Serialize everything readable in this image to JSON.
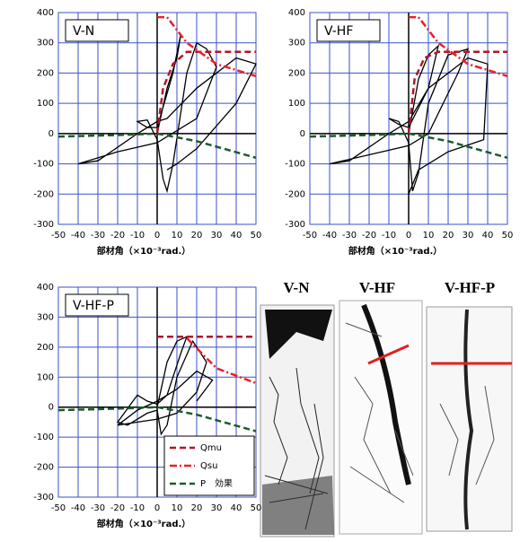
{
  "chart_data": [
    {
      "type": "line",
      "title": "V-N",
      "xlabel": "部材角（×10⁻³rad.）",
      "xlim": [
        -50,
        50
      ],
      "xticks": [
        -50,
        -40,
        -30,
        -20,
        -10,
        0,
        10,
        20,
        30,
        40,
        50
      ],
      "ylim": [
        -300,
        400
      ],
      "yticks": [
        -300,
        -200,
        -100,
        0,
        100,
        200,
        300,
        400
      ],
      "grid": true,
      "series": [
        {
          "color": "#000000",
          "style": "solid",
          "x": [
            0,
            5,
            10,
            12,
            8,
            0,
            -5,
            -10,
            -5,
            0,
            3,
            5,
            8,
            15,
            20,
            25,
            30,
            20,
            0,
            -20,
            -40,
            -30,
            -10,
            0,
            5,
            20,
            40,
            45,
            50,
            40,
            20,
            10,
            5
          ],
          "values": [
            0,
            150,
            250,
            330,
            200,
            20,
            20,
            40,
            45,
            -20,
            -150,
            -190,
            -100,
            200,
            300,
            280,
            220,
            50,
            -30,
            -60,
            -100,
            -90,
            0,
            40,
            50,
            150,
            250,
            240,
            230,
            100,
            -50,
            -100,
            -120
          ]
        },
        {
          "color": "#b0162b",
          "style": "dashed",
          "x": [
            0,
            3,
            8,
            15,
            50
          ],
          "values": [
            0,
            150,
            230,
            270,
            270
          ]
        },
        {
          "color": "#e8202a",
          "style": "dashdot",
          "x": [
            0,
            5,
            15,
            30,
            50
          ],
          "values": [
            385,
            385,
            300,
            230,
            190
          ]
        },
        {
          "color": "#1e5a2a",
          "style": "dashed",
          "x": [
            -50,
            -20,
            0,
            20,
            50
          ],
          "values": [
            -10,
            -5,
            0,
            -25,
            -80
          ]
        }
      ]
    },
    {
      "type": "line",
      "title": "V-HF",
      "xlabel": "部材角（×10⁻³rad.）",
      "xlim": [
        -50,
        50
      ],
      "xticks": [
        -50,
        -40,
        -30,
        -20,
        -10,
        0,
        10,
        20,
        30,
        40,
        50
      ],
      "ylim": [
        -300,
        400
      ],
      "yticks": [
        -300,
        -200,
        -100,
        0,
        100,
        200,
        300,
        400
      ],
      "grid": true,
      "series": [
        {
          "color": "#000000",
          "style": "solid",
          "x": [
            0,
            5,
            10,
            15,
            10,
            0,
            -5,
            -10,
            -5,
            0,
            2,
            5,
            10,
            20,
            30,
            25,
            10,
            0,
            -20,
            -40,
            -30,
            -10,
            0,
            10,
            30,
            40,
            38,
            20,
            5,
            0
          ],
          "values": [
            0,
            180,
            260,
            290,
            150,
            20,
            30,
            50,
            40,
            -30,
            -190,
            -130,
            100,
            260,
            280,
            200,
            0,
            -40,
            -70,
            -100,
            -90,
            0,
            40,
            150,
            250,
            230,
            -20,
            -60,
            -120,
            -200
          ]
        },
        {
          "color": "#b0162b",
          "style": "dashed",
          "x": [
            0,
            3,
            8,
            15,
            50
          ],
          "values": [
            0,
            180,
            250,
            270,
            270
          ]
        },
        {
          "color": "#e8202a",
          "style": "dashdot",
          "x": [
            0,
            5,
            15,
            30,
            50
          ],
          "values": [
            385,
            385,
            300,
            230,
            190
          ]
        },
        {
          "color": "#1e5a2a",
          "style": "dashed",
          "x": [
            -50,
            -20,
            0,
            20,
            50
          ],
          "values": [
            -10,
            -5,
            0,
            -25,
            -80
          ]
        }
      ]
    },
    {
      "type": "line",
      "title": "V-HF-P",
      "xlabel": "部材角（×10⁻³rad.）",
      "xlim": [
        -50,
        50
      ],
      "xticks": [
        -50,
        -40,
        -30,
        -20,
        -10,
        0,
        10,
        20,
        30,
        40,
        50
      ],
      "ylim": [
        -300,
        400
      ],
      "yticks": [
        -300,
        -200,
        -100,
        0,
        100,
        200,
        300,
        400
      ],
      "grid": true,
      "legend": "lower right",
      "series": [
        {
          "color": "#000000",
          "style": "solid",
          "x": [
            0,
            5,
            10,
            15,
            12,
            5,
            0,
            -5,
            -10,
            -20,
            -15,
            -5,
            0,
            2,
            5,
            10,
            18,
            25,
            20,
            10,
            0,
            -10,
            -20,
            -10,
            0,
            10,
            20,
            28,
            20
          ],
          "values": [
            0,
            150,
            220,
            235,
            180,
            40,
            10,
            20,
            40,
            -50,
            -60,
            -20,
            -10,
            -90,
            -60,
            100,
            220,
            150,
            50,
            -20,
            -40,
            -50,
            -60,
            -10,
            20,
            60,
            120,
            90,
            20
          ]
        },
        {
          "name": "Qmu",
          "color": "#b0162b",
          "style": "dashed",
          "x": [
            0,
            50
          ],
          "values": [
            235,
            235
          ]
        },
        {
          "name": "Qsu",
          "color": "#e8202a",
          "style": "dashdot",
          "x": [
            15,
            30,
            50
          ],
          "values": [
            230,
            130,
            80
          ]
        },
        {
          "name": "P　効果",
          "color": "#1e5a2a",
          "style": "dashed",
          "x": [
            -50,
            -20,
            0,
            20,
            50
          ],
          "values": [
            -10,
            -5,
            0,
            -25,
            -80
          ]
        }
      ]
    }
  ],
  "photos": {
    "labels": [
      "V-N",
      "V-HF",
      "V-HF-P"
    ]
  }
}
